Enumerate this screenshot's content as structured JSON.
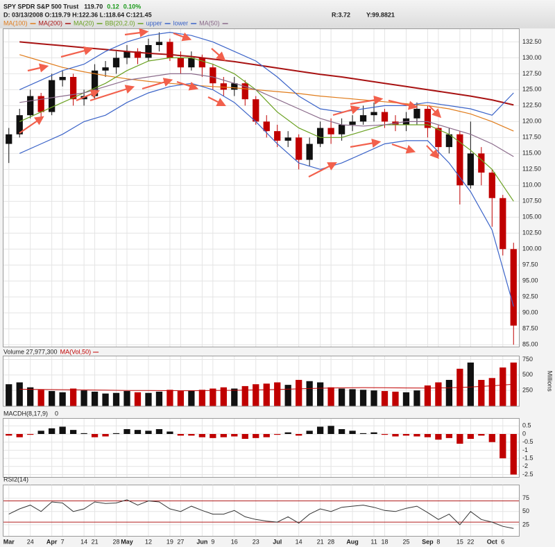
{
  "header": {
    "title": "SPY SPDR S&P 500 Trust",
    "last": "119.70",
    "change": "0.12",
    "change_pct": "0.10%",
    "info": "D: 03/13/2008 O:119.79 H:122.36 L:118.64 C:121.45",
    "range": "R:3.72",
    "y_value": "Y:99.8821"
  },
  "chart_data": [
    {
      "type": "candlestick",
      "up_color": "#111111",
      "down_color": "#c00000",
      "band_name": "BB(20,2.0)",
      "band_color": "#6aa121",
      "open": [
        116.5,
        118,
        121,
        124,
        121.5,
        126.5,
        127,
        123.5,
        124,
        128,
        128.5,
        130,
        131,
        130,
        132,
        132.5,
        130,
        128.5,
        130,
        128.5,
        126,
        125,
        126,
        123.5,
        120,
        118.5,
        117,
        117.5,
        114,
        116.5,
        119,
        118,
        119.5,
        120,
        121,
        121.5,
        120,
        119.5,
        120.5,
        122,
        119,
        116,
        118,
        110,
        115,
        112,
        108,
        100
      ],
      "high": [
        119,
        122,
        125,
        124.5,
        127.5,
        128,
        127.5,
        125,
        129,
        129.5,
        131,
        132,
        131.5,
        133,
        134,
        133,
        131,
        131,
        130.5,
        129,
        127,
        127,
        126.5,
        124,
        121,
        119.5,
        118.5,
        118,
        117.5,
        120,
        120.5,
        120.5,
        121,
        122.5,
        123,
        122,
        121,
        121.5,
        123,
        122.5,
        119.5,
        119,
        118.5,
        120,
        116,
        112.5,
        108.5,
        101
      ],
      "low": [
        113.5,
        117.5,
        120.5,
        120.5,
        121,
        125.5,
        122.5,
        122.5,
        123.5,
        127,
        127.5,
        129,
        129,
        129.5,
        131,
        129.5,
        127.5,
        128,
        127,
        125,
        124,
        124,
        122.5,
        119.5,
        117.5,
        116,
        116,
        112.5,
        113,
        116,
        116.5,
        117,
        118.5,
        119.5,
        120,
        119,
        118.5,
        118.5,
        119.5,
        117.5,
        114.5,
        115,
        107,
        109.5,
        110,
        103.5,
        99,
        85
      ],
      "close": [
        118,
        121,
        124,
        121.5,
        126.5,
        127,
        123.5,
        124,
        128,
        128.5,
        130,
        131,
        130,
        132,
        132.5,
        130,
        128.5,
        130,
        128.5,
        126,
        125,
        126,
        123.5,
        120,
        118.5,
        117,
        117.5,
        114,
        116.5,
        119,
        118,
        119.5,
        120,
        121,
        121.5,
        120,
        119.5,
        120.5,
        122,
        119,
        116,
        118,
        110,
        115,
        112,
        108,
        100,
        88
      ],
      "ylim": [
        84.7,
        134.5
      ],
      "yticks": [
        {
          "value": 85,
          "label": "85.00"
        },
        {
          "value": 87.5,
          "label": "87.50"
        },
        {
          "value": 90,
          "label": "90.00"
        },
        {
          "value": 92.5,
          "label": "92.50"
        },
        {
          "value": 95,
          "label": "95.00"
        },
        {
          "value": 97.5,
          "label": "97.50"
        },
        {
          "value": 100,
          "label": "100.00"
        },
        {
          "value": 102.5,
          "label": "102.50"
        },
        {
          "value": 105,
          "label": "105.00"
        },
        {
          "value": 107.5,
          "label": "107.50"
        },
        {
          "value": 110,
          "label": "110.00"
        },
        {
          "value": 112.5,
          "label": "112.50"
        },
        {
          "value": 115,
          "label": "115.00"
        },
        {
          "value": 117.5,
          "label": "117.50"
        },
        {
          "value": 120,
          "label": "120.00"
        },
        {
          "value": 122.5,
          "label": "122.50"
        },
        {
          "value": 125,
          "label": "125.00"
        },
        {
          "value": 127.5,
          "label": "127.50"
        },
        {
          "value": 130,
          "label": "130.00"
        },
        {
          "value": 132.5,
          "label": "132.50"
        }
      ],
      "grid": true,
      "series": [
        {
          "name": "MA(100)",
          "color": "#e07b1a",
          "values": [
            130.5,
            129.5,
            128.5,
            127.8,
            127.2,
            126.7,
            126.3,
            126.0,
            125.7,
            125.5,
            125.3,
            125.0,
            124.7,
            124.4,
            124.0,
            123.7,
            123.4,
            123.1,
            122.8,
            122.5,
            122.0,
            121.2,
            120.0,
            118.5
          ]
        },
        {
          "name": "MA(200)",
          "color": "#a81212",
          "values": [
            132.5,
            132.2,
            131.9,
            131.6,
            131.3,
            131.0,
            130.7,
            130.5,
            130.2,
            129.8,
            129.4,
            128.9,
            128.4,
            127.9,
            127.4,
            127.0,
            126.5,
            126.0,
            125.5,
            125.0,
            124.5,
            124.0,
            123.4,
            122.6
          ]
        },
        {
          "name": "MA(20)",
          "color": "#6aa121",
          "values": [
            120,
            121.5,
            123,
            124.5,
            126,
            128,
            129.5,
            130,
            130,
            129,
            127.5,
            125,
            121.5,
            119,
            117.5,
            117.5,
            118.5,
            119.5,
            119.5,
            119.5,
            118,
            115.5,
            112.5,
            107.5
          ]
        },
        {
          "name": "upper",
          "color": "#3a63c8",
          "values": [
            125,
            126.5,
            128,
            129,
            131,
            132.5,
            133.5,
            134,
            133.5,
            132.5,
            131,
            129.5,
            127,
            124,
            122,
            121.5,
            122,
            122.5,
            122.5,
            123,
            122.5,
            122,
            121,
            124.5
          ]
        },
        {
          "name": "lower",
          "color": "#3a63c8",
          "values": [
            115,
            116.5,
            118,
            120,
            121,
            123,
            124.5,
            125.5,
            126,
            125,
            123,
            120,
            116.5,
            113.5,
            112.5,
            113.5,
            115,
            116.5,
            117,
            117,
            113.5,
            109,
            103,
            91
          ]
        },
        {
          "name": "MA(50)",
          "color": "#8a6a8a",
          "values": [
            123.0,
            123.5,
            124.0,
            124.5,
            125.5,
            126.5,
            127.0,
            127.5,
            127.5,
            127.0,
            126.0,
            125.0,
            123.5,
            122.0,
            120.5,
            119.5,
            119.3,
            119.5,
            120.0,
            120.0,
            119.0,
            118.0,
            116.5,
            114.5
          ]
        }
      ]
    },
    {
      "type": "bar",
      "title": "Volume 27,977,300",
      "axis_label": "Millions",
      "values": [
        350,
        380,
        300,
        260,
        240,
        220,
        280,
        250,
        230,
        200,
        210,
        240,
        220,
        210,
        230,
        260,
        240,
        250,
        260,
        280,
        300,
        280,
        320,
        350,
        360,
        380,
        340,
        420,
        400,
        380,
        300,
        280,
        270,
        260,
        250,
        240,
        230,
        220,
        250,
        330,
        380,
        420,
        600,
        700,
        420,
        450,
        620,
        700
      ],
      "ylim": [
        0,
        800
      ],
      "yticks": [
        250,
        500,
        750
      ],
      "series": [
        {
          "name": "MA(Vol,50)",
          "color": "#c00000",
          "values": [
            270,
            265,
            262,
            258,
            255,
            250,
            248,
            246,
            245,
            248,
            252,
            258,
            265,
            275,
            285,
            292,
            295,
            293,
            290,
            288,
            292,
            305,
            325,
            350
          ]
        }
      ]
    },
    {
      "type": "bar",
      "title": "MACDH(8,17,9)",
      "title_value": "0",
      "positive_color": "#111111",
      "negative_color": "#c00000",
      "values": [
        -0.1,
        -0.2,
        -0.05,
        0.2,
        0.35,
        0.45,
        0.25,
        0.05,
        -0.2,
        -0.15,
        0.05,
        0.3,
        0.25,
        0.2,
        0.3,
        0.15,
        -0.1,
        -0.1,
        -0.2,
        -0.25,
        -0.2,
        -0.15,
        -0.3,
        -0.25,
        -0.2,
        -0.05,
        0.1,
        -0.1,
        0.2,
        0.45,
        0.5,
        0.3,
        0.2,
        0.05,
        0.1,
        -0.05,
        -0.15,
        -0.1,
        -0.15,
        -0.2,
        -0.35,
        -0.25,
        -0.6,
        -0.3,
        -0.1,
        -0.5,
        -1.5,
        -2.5
      ],
      "ylim": [
        -2.65,
        0.94
      ],
      "yticks": [
        0.5,
        0,
        -0.5,
        -1,
        -1.5,
        -2,
        -2.5
      ]
    },
    {
      "type": "line",
      "title": "RSI2(14)",
      "color": "#333333",
      "levels": [
        70,
        30
      ],
      "level_color": "#b01c1c",
      "values": [
        45,
        55,
        62,
        50,
        68,
        66,
        50,
        55,
        68,
        65,
        66,
        72,
        62,
        70,
        68,
        55,
        50,
        60,
        52,
        45,
        45,
        52,
        40,
        35,
        32,
        30,
        40,
        28,
        45,
        55,
        50,
        58,
        60,
        62,
        58,
        52,
        50,
        56,
        60,
        48,
        35,
        45,
        25,
        50,
        35,
        30,
        22,
        18
      ],
      "ylim": [
        4,
        100
      ],
      "yticks": [
        25,
        50,
        75
      ],
      "categories": [
        "Mar",
        null,
        "24",
        null,
        "Apr",
        "7",
        null,
        "14",
        "21",
        null,
        "28",
        "May",
        null,
        "12",
        null,
        "19",
        "27",
        null,
        "Jun",
        "9",
        null,
        "16",
        null,
        "23",
        null,
        "Jul",
        null,
        "14",
        null,
        "21",
        "28",
        null,
        "Aug",
        null,
        "11",
        "18",
        null,
        "25",
        null,
        "Sep",
        "8",
        null,
        "15",
        "22",
        null,
        "Oct",
        "6",
        null
      ]
    }
  ]
}
